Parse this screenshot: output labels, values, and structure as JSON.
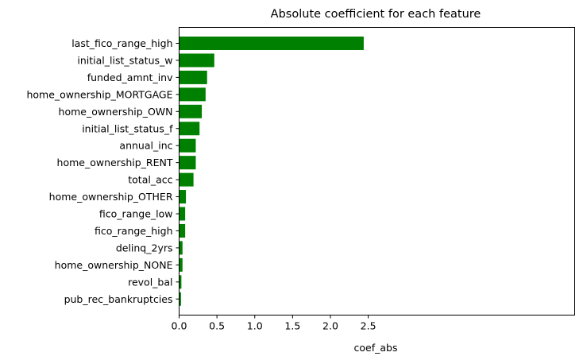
{
  "chart_data": {
    "type": "bar",
    "orientation": "horizontal",
    "title": "Absolute coefficient for each feature",
    "xlabel": "coef_abs",
    "ylabel": "",
    "xlim": [
      0,
      2.55
    ],
    "xticks": [
      "0.0",
      "0.5",
      "1.0",
      "1.5",
      "2.0",
      "2.5"
    ],
    "grid": false,
    "bar_color": "#008000",
    "categories": [
      "last_fico_range_high",
      "initial_list_status_w",
      "funded_amnt_inv",
      "home_ownership_MORTGAGE",
      "home_ownership_OWN",
      "initial_list_status_f",
      "annual_inc",
      "home_ownership_RENT",
      "total_acc",
      "home_ownership_OTHER",
      "fico_range_low",
      "fico_range_high",
      "delinq_2yrs",
      "home_ownership_NONE",
      "revol_bal",
      "pub_rec_bankruptcies"
    ],
    "values": [
      2.44,
      0.465,
      0.37,
      0.35,
      0.3,
      0.27,
      0.22,
      0.22,
      0.19,
      0.09,
      0.08,
      0.08,
      0.045,
      0.045,
      0.03,
      0.025
    ]
  }
}
